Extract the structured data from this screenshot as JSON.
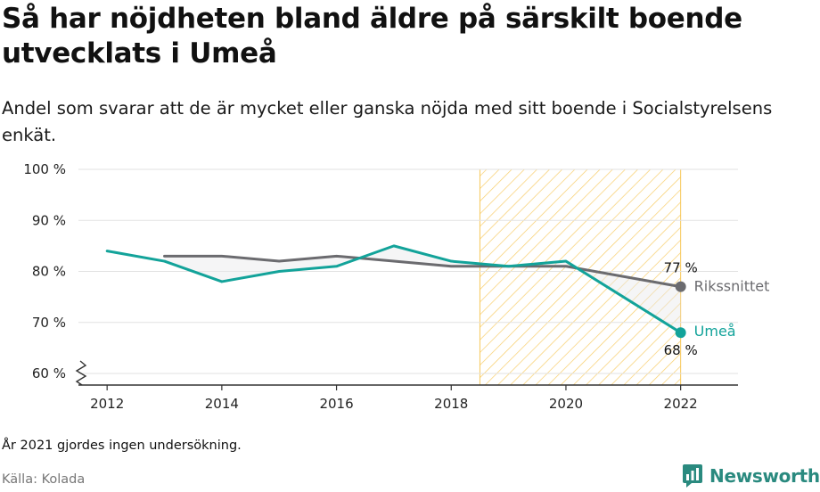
{
  "title": "Så har nöjdheten bland äldre på särskilt boende utvecklats i Umeå",
  "subtitle": "Andel som svarar att de är mycket eller ganska nöjda med sitt boende i Socialstyrelsens enkät.",
  "note": "År 2021 gjordes ingen undersökning.",
  "source": "Källa: Kolada",
  "brand": "Newsworthy",
  "colors": {
    "rikssnittet": "#6b6b6f",
    "umea": "#13a39a",
    "highlight": "#f7c85a",
    "grid": "#e2e2e2",
    "axis": "#333333"
  },
  "chart_data": {
    "type": "line",
    "xlim": [
      2011.5,
      2023.0
    ],
    "ylim": [
      60,
      100
    ],
    "x_ticks": [
      2012,
      2014,
      2016,
      2018,
      2020,
      2022
    ],
    "x_tick_labels": [
      "2012",
      "2014",
      "2016",
      "2018",
      "2020",
      "2022"
    ],
    "y_ticks": [
      60,
      70,
      80,
      90,
      100
    ],
    "y_tick_labels": [
      "60 %",
      "70 %",
      "80 %",
      "90 %",
      "100 %"
    ],
    "y_axis_break": true,
    "grid": true,
    "highlight_period": [
      2018.5,
      2022
    ],
    "series": [
      {
        "name": "Rikssnittet",
        "color": "#6b6b6f",
        "x": [
          2013,
          2014,
          2015,
          2016,
          2017,
          2018,
          2019,
          2020,
          2022
        ],
        "values": [
          83,
          83,
          82,
          83,
          82,
          81,
          81,
          81,
          77
        ],
        "end_label": "77 %"
      },
      {
        "name": "Umeå",
        "color": "#13a39a",
        "x": [
          2012,
          2013,
          2014,
          2015,
          2016,
          2017,
          2018,
          2019,
          2020,
          2022
        ],
        "values": [
          84,
          82,
          78,
          80,
          81,
          85,
          82,
          81,
          82,
          68
        ],
        "end_label": "68 %"
      }
    ]
  }
}
